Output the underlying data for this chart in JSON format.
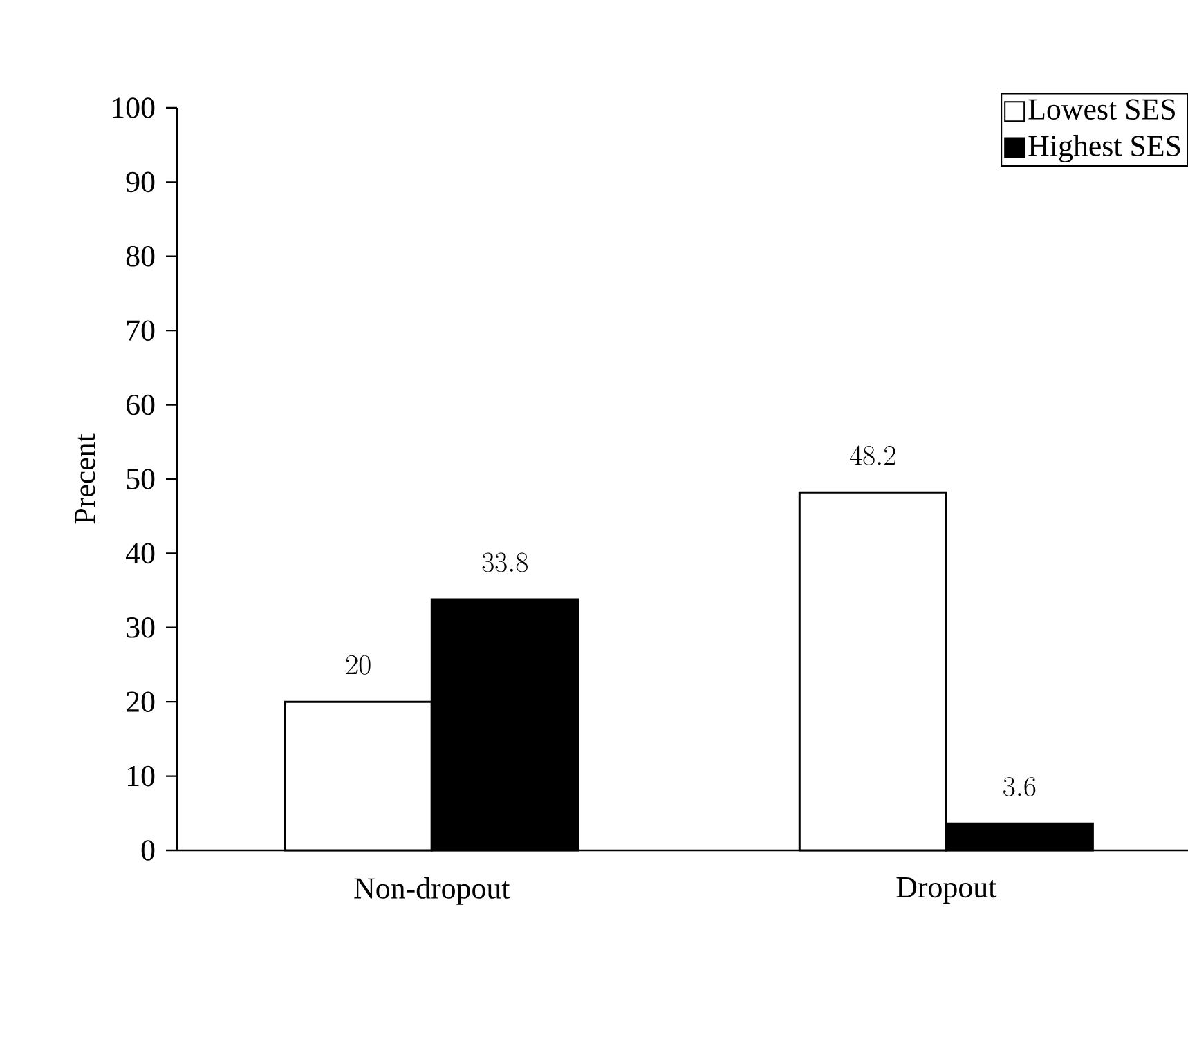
{
  "chart_data": {
    "type": "bar",
    "ylabel": "Precent",
    "categories": [
      "Non-dropout",
      "Dropout"
    ],
    "series": [
      {
        "name": "Lowest SES",
        "color": "#ffffff",
        "values": [
          20,
          48.2
        ]
      },
      {
        "name": "Highest SES",
        "color": "#000000",
        "values": [
          33.8,
          3.6
        ]
      }
    ],
    "ylim": [
      0,
      100
    ],
    "yticks": [
      0,
      10,
      20,
      30,
      40,
      50,
      60,
      70,
      80,
      90,
      100
    ],
    "legend": "top right",
    "data_labels": true,
    "grid": false
  }
}
